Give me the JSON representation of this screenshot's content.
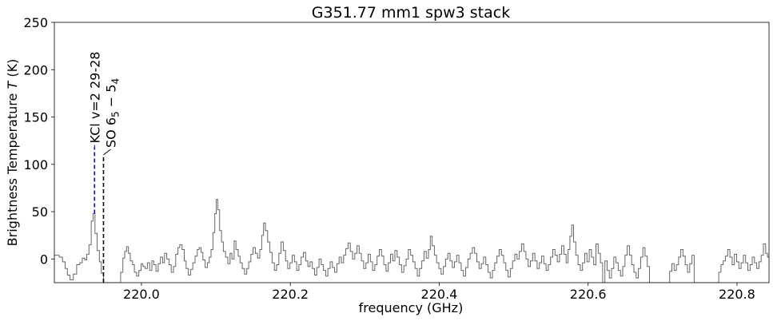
{
  "chart_data": {
    "type": "line",
    "style": "step",
    "title": "G351.77 mm1 spw3 stack",
    "xlabel": "frequency (GHz)",
    "ylabel_prefix": "Brightness Temperature",
    "ylabel_var": "T",
    "ylabel_unit": "(K)",
    "xlim": [
      219.883,
      220.843
    ],
    "ylim": [
      -25,
      250
    ],
    "xticks": [
      {
        "value": 220.0,
        "label": "220.0"
      },
      {
        "value": 220.2,
        "label": "220.2"
      },
      {
        "value": 220.4,
        "label": "220.4"
      },
      {
        "value": 220.6,
        "label": "220.6"
      },
      {
        "value": 220.8,
        "label": "220.8"
      }
    ],
    "yticks": [
      {
        "value": 0,
        "label": "0"
      },
      {
        "value": 50,
        "label": "50"
      },
      {
        "value": 100,
        "label": "100"
      },
      {
        "value": 150,
        "label": "150"
      },
      {
        "value": 200,
        "label": "200"
      },
      {
        "value": 250,
        "label": "250"
      }
    ],
    "grid": false,
    "series_color": "#666666",
    "annotations": [
      {
        "freq": 219.937,
        "peak": 48,
        "top": 118,
        "color": "#0000ff",
        "label": "KCl v=2 29-28",
        "segments": [
          {
            "text": "KCl v=2 29-28"
          }
        ]
      },
      {
        "freq": 219.949,
        "peak": -25,
        "top": 110,
        "color": "#000000",
        "label": "SO 6_5 − 5_4",
        "segments": [
          {
            "text": "SO 6"
          },
          {
            "text": "5",
            "sub": true
          },
          {
            "text": " − 5"
          },
          {
            "text": "4",
            "sub": true
          }
        ]
      }
    ],
    "spectrum": [
      {
        "x": 219.883,
        "y": 4
      },
      {
        "x": 219.8895,
        "y": 2
      },
      {
        "x": 219.894,
        "y": -3
      },
      {
        "x": 219.8975,
        "y": -10
      },
      {
        "x": 219.9005,
        "y": -17
      },
      {
        "x": 219.904,
        "y": -22
      },
      {
        "x": 219.9085,
        "y": -16
      },
      {
        "x": 219.913,
        "y": -6
      },
      {
        "x": 219.917,
        "y": -4
      },
      {
        "x": 219.9205,
        "y": 1
      },
      {
        "x": 219.924,
        "y": -1
      },
      {
        "x": 219.9265,
        "y": 5
      },
      {
        "x": 219.9295,
        "y": 15
      },
      {
        "x": 219.9325,
        "y": 40
      },
      {
        "x": 219.935,
        "y": 48
      },
      {
        "x": 219.9375,
        "y": 27
      },
      {
        "x": 219.9405,
        "y": 9
      },
      {
        "x": 219.9435,
        "y": -3
      },
      {
        "x": 219.946,
        "y": -15
      },
      {
        "x": 219.949,
        "y": -25
      },
      {
        "x": 219.972,
        "y": -14
      },
      {
        "x": 219.975,
        "y": 1
      },
      {
        "x": 219.9775,
        "y": 8
      },
      {
        "x": 219.98,
        "y": 13
      },
      {
        "x": 219.9825,
        "y": 6
      },
      {
        "x": 219.985,
        "y": -2
      },
      {
        "x": 219.988,
        "y": -6
      },
      {
        "x": 219.9905,
        "y": -14
      },
      {
        "x": 219.9935,
        "y": -18
      },
      {
        "x": 219.9965,
        "y": -12
      },
      {
        "x": 219.9995,
        "y": -5
      },
      {
        "x": 220.002,
        "y": -8
      },
      {
        "x": 220.005,
        "y": -10
      },
      {
        "x": 220.008,
        "y": -4
      },
      {
        "x": 220.011,
        "y": -12
      },
      {
        "x": 220.014,
        "y": -2
      },
      {
        "x": 220.0165,
        "y": -6
      },
      {
        "x": 220.0195,
        "y": -13
      },
      {
        "x": 220.0225,
        "y": -5
      },
      {
        "x": 220.0255,
        "y": 2
      },
      {
        "x": 220.0285,
        "y": -4
      },
      {
        "x": 220.031,
        "y": 6
      },
      {
        "x": 220.034,
        "y": 0
      },
      {
        "x": 220.037,
        "y": -6
      },
      {
        "x": 220.04,
        "y": -14
      },
      {
        "x": 220.043,
        "y": -8
      },
      {
        "x": 220.046,
        "y": 5
      },
      {
        "x": 220.049,
        "y": 12
      },
      {
        "x": 220.0515,
        "y": 15
      },
      {
        "x": 220.0545,
        "y": 10
      },
      {
        "x": 220.0575,
        "y": -2
      },
      {
        "x": 220.06,
        "y": -10
      },
      {
        "x": 220.063,
        "y": -17
      },
      {
        "x": 220.066,
        "y": -11
      },
      {
        "x": 220.069,
        "y": -4
      },
      {
        "x": 220.072,
        "y": 3
      },
      {
        "x": 220.075,
        "y": 10
      },
      {
        "x": 220.0775,
        "y": 12
      },
      {
        "x": 220.08,
        "y": 7
      },
      {
        "x": 220.0825,
        "y": -1
      },
      {
        "x": 220.0855,
        "y": -9
      },
      {
        "x": 220.0885,
        "y": -4
      },
      {
        "x": 220.091,
        "y": 2
      },
      {
        "x": 220.0935,
        "y": 10
      },
      {
        "x": 220.096,
        "y": 28
      },
      {
        "x": 220.0985,
        "y": 48
      },
      {
        "x": 220.1005,
        "y": 63
      },
      {
        "x": 220.1025,
        "y": 52
      },
      {
        "x": 220.105,
        "y": 30
      },
      {
        "x": 220.1075,
        "y": 18
      },
      {
        "x": 220.11,
        "y": 8
      },
      {
        "x": 220.113,
        "y": 2
      },
      {
        "x": 220.116,
        "y": -5
      },
      {
        "x": 220.119,
        "y": 6
      },
      {
        "x": 220.1215,
        "y": 0
      },
      {
        "x": 220.1245,
        "y": 19
      },
      {
        "x": 220.127,
        "y": 10
      },
      {
        "x": 220.13,
        "y": 3
      },
      {
        "x": 220.1325,
        "y": -4
      },
      {
        "x": 220.1355,
        "y": -10
      },
      {
        "x": 220.1385,
        "y": -16
      },
      {
        "x": 220.1415,
        "y": -10
      },
      {
        "x": 220.144,
        "y": -3
      },
      {
        "x": 220.147,
        "y": 5
      },
      {
        "x": 220.15,
        "y": 12
      },
      {
        "x": 220.153,
        "y": 6
      },
      {
        "x": 220.156,
        "y": 1
      },
      {
        "x": 220.159,
        "y": 10
      },
      {
        "x": 220.1615,
        "y": 25
      },
      {
        "x": 220.164,
        "y": 38
      },
      {
        "x": 220.1665,
        "y": 30
      },
      {
        "x": 220.1695,
        "y": 18
      },
      {
        "x": 220.1725,
        "y": 7
      },
      {
        "x": 220.1755,
        "y": -4
      },
      {
        "x": 220.1785,
        "y": -12
      },
      {
        "x": 220.1815,
        "y": -6
      },
      {
        "x": 220.1845,
        "y": 6
      },
      {
        "x": 220.1875,
        "y": 18
      },
      {
        "x": 220.1905,
        "y": 9
      },
      {
        "x": 220.1935,
        "y": -2
      },
      {
        "x": 220.1965,
        "y": -10
      },
      {
        "x": 220.1995,
        "y": -4
      },
      {
        "x": 220.2025,
        "y": 4
      },
      {
        "x": 220.2055,
        "y": -3
      },
      {
        "x": 220.2085,
        "y": -12
      },
      {
        "x": 220.2115,
        "y": -6
      },
      {
        "x": 220.2145,
        "y": 2
      },
      {
        "x": 220.2175,
        "y": 7
      },
      {
        "x": 220.2205,
        "y": -2
      },
      {
        "x": 220.2235,
        "y": -8
      },
      {
        "x": 220.2265,
        "y": -3
      },
      {
        "x": 220.2295,
        "y": -10
      },
      {
        "x": 220.2325,
        "y": -17
      },
      {
        "x": 220.2355,
        "y": -9
      },
      {
        "x": 220.2385,
        "y": 0
      },
      {
        "x": 220.2415,
        "y": -6
      },
      {
        "x": 220.2445,
        "y": -12
      },
      {
        "x": 220.2475,
        "y": -18
      },
      {
        "x": 220.2505,
        "y": -10
      },
      {
        "x": 220.2535,
        "y": -3
      },
      {
        "x": 220.2565,
        "y": -9
      },
      {
        "x": 220.2595,
        "y": -14
      },
      {
        "x": 220.2625,
        "y": -5
      },
      {
        "x": 220.2655,
        "y": 2
      },
      {
        "x": 220.2685,
        "y": -4
      },
      {
        "x": 220.2715,
        "y": 4
      },
      {
        "x": 220.2745,
        "y": 11
      },
      {
        "x": 220.2775,
        "y": 17
      },
      {
        "x": 220.2805,
        "y": 8
      },
      {
        "x": 220.2835,
        "y": 0
      },
      {
        "x": 220.2865,
        "y": 6
      },
      {
        "x": 220.2895,
        "y": 14
      },
      {
        "x": 220.2925,
        "y": 6
      },
      {
        "x": 220.2955,
        "y": -2
      },
      {
        "x": 220.2985,
        "y": -10
      },
      {
        "x": 220.3015,
        "y": -4
      },
      {
        "x": 220.3045,
        "y": 5
      },
      {
        "x": 220.3075,
        "y": -3
      },
      {
        "x": 220.3105,
        "y": -12
      },
      {
        "x": 220.3135,
        "y": -6
      },
      {
        "x": 220.3165,
        "y": 3
      },
      {
        "x": 220.3195,
        "y": 10
      },
      {
        "x": 220.3225,
        "y": 3
      },
      {
        "x": 220.3255,
        "y": -6
      },
      {
        "x": 220.3285,
        "y": -13
      },
      {
        "x": 220.3315,
        "y": -4
      },
      {
        "x": 220.3345,
        "y": 5
      },
      {
        "x": 220.3375,
        "y": -2
      },
      {
        "x": 220.3405,
        "y": 9
      },
      {
        "x": 220.3435,
        "y": 2
      },
      {
        "x": 220.3465,
        "y": -6
      },
      {
        "x": 220.3495,
        "y": -14
      },
      {
        "x": 220.3525,
        "y": -7
      },
      {
        "x": 220.3555,
        "y": 0
      },
      {
        "x": 220.3585,
        "y": 10
      },
      {
        "x": 220.3615,
        "y": 4
      },
      {
        "x": 220.3645,
        "y": -3
      },
      {
        "x": 220.3675,
        "y": -10
      },
      {
        "x": 220.3705,
        "y": -18
      },
      {
        "x": 220.3735,
        "y": -10
      },
      {
        "x": 220.3765,
        "y": -2
      },
      {
        "x": 220.3795,
        "y": 8
      },
      {
        "x": 220.3825,
        "y": 1
      },
      {
        "x": 220.3855,
        "y": 10
      },
      {
        "x": 220.388,
        "y": 24
      },
      {
        "x": 220.3905,
        "y": 14
      },
      {
        "x": 220.3935,
        "y": 4
      },
      {
        "x": 220.3965,
        "y": -4
      },
      {
        "x": 220.3995,
        "y": -10
      },
      {
        "x": 220.4025,
        "y": -16
      },
      {
        "x": 220.4055,
        "y": -8
      },
      {
        "x": 220.4085,
        "y": 0
      },
      {
        "x": 220.4115,
        "y": 6
      },
      {
        "x": 220.4145,
        "y": -2
      },
      {
        "x": 220.4175,
        "y": -9
      },
      {
        "x": 220.4205,
        "y": -3
      },
      {
        "x": 220.4235,
        "y": 4
      },
      {
        "x": 220.4265,
        "y": -4
      },
      {
        "x": 220.4295,
        "y": -12
      },
      {
        "x": 220.4325,
        "y": -18
      },
      {
        "x": 220.4355,
        "y": -9
      },
      {
        "x": 220.4385,
        "y": 0
      },
      {
        "x": 220.4415,
        "y": 6
      },
      {
        "x": 220.4445,
        "y": 12
      },
      {
        "x": 220.4475,
        "y": 6
      },
      {
        "x": 220.4505,
        "y": -3
      },
      {
        "x": 220.4535,
        "y": -10
      },
      {
        "x": 220.4565,
        "y": -5
      },
      {
        "x": 220.4595,
        "y": 2
      },
      {
        "x": 220.4625,
        "y": -6
      },
      {
        "x": 220.4655,
        "y": -14
      },
      {
        "x": 220.4685,
        "y": -20
      },
      {
        "x": 220.4715,
        "y": -12
      },
      {
        "x": 220.4745,
        "y": -4
      },
      {
        "x": 220.4775,
        "y": 3
      },
      {
        "x": 220.4805,
        "y": 10
      },
      {
        "x": 220.4835,
        "y": 4
      },
      {
        "x": 220.4865,
        "y": -4
      },
      {
        "x": 220.4895,
        "y": -12
      },
      {
        "x": 220.4925,
        "y": -19
      },
      {
        "x": 220.4955,
        "y": -10
      },
      {
        "x": 220.4985,
        "y": -2
      },
      {
        "x": 220.5015,
        "y": 5
      },
      {
        "x": 220.5045,
        "y": 0
      },
      {
        "x": 220.5075,
        "y": 8
      },
      {
        "x": 220.5105,
        "y": 16
      },
      {
        "x": 220.5135,
        "y": 8
      },
      {
        "x": 220.5165,
        "y": 0
      },
      {
        "x": 220.5195,
        "y": -8
      },
      {
        "x": 220.5225,
        "y": -2
      },
      {
        "x": 220.5255,
        "y": 6
      },
      {
        "x": 220.5285,
        "y": -2
      },
      {
        "x": 220.5315,
        "y": -10
      },
      {
        "x": 220.5345,
        "y": -4
      },
      {
        "x": 220.5375,
        "y": 3
      },
      {
        "x": 220.5405,
        "y": -5
      },
      {
        "x": 220.5435,
        "y": -12
      },
      {
        "x": 220.5465,
        "y": -6
      },
      {
        "x": 220.5495,
        "y": 2
      },
      {
        "x": 220.5525,
        "y": 10
      },
      {
        "x": 220.5555,
        "y": 4
      },
      {
        "x": 220.5585,
        "y": -3
      },
      {
        "x": 220.5615,
        "y": 5
      },
      {
        "x": 220.5645,
        "y": 14
      },
      {
        "x": 220.5675,
        "y": 5
      },
      {
        "x": 220.5705,
        "y": -4
      },
      {
        "x": 220.573,
        "y": 10
      },
      {
        "x": 220.5755,
        "y": 24
      },
      {
        "x": 220.578,
        "y": 36
      },
      {
        "x": 220.5805,
        "y": 18
      },
      {
        "x": 220.5835,
        "y": 4
      },
      {
        "x": 220.5865,
        "y": -6
      },
      {
        "x": 220.5895,
        "y": -12
      },
      {
        "x": 220.5925,
        "y": -4
      },
      {
        "x": 220.5955,
        "y": 6
      },
      {
        "x": 220.5985,
        "y": -3
      },
      {
        "x": 220.6015,
        "y": 10
      },
      {
        "x": 220.6045,
        "y": 2
      },
      {
        "x": 220.6075,
        "y": -6
      },
      {
        "x": 220.6105,
        "y": 16
      },
      {
        "x": 220.6135,
        "y": 6
      },
      {
        "x": 220.6165,
        "y": -4
      },
      {
        "x": 220.6195,
        "y": -25
      },
      {
        "x": 220.6225,
        "y": -2
      },
      {
        "x": 220.6255,
        "y": -12
      },
      {
        "x": 220.6285,
        "y": -20
      },
      {
        "x": 220.6315,
        "y": -10
      },
      {
        "x": 220.6345,
        "y": 2
      },
      {
        "x": 220.6375,
        "y": -4
      },
      {
        "x": 220.6405,
        "y": -12
      },
      {
        "x": 220.6435,
        "y": -18
      },
      {
        "x": 220.6465,
        "y": -8
      },
      {
        "x": 220.6495,
        "y": 4
      },
      {
        "x": 220.6525,
        "y": 14
      },
      {
        "x": 220.6555,
        "y": 4
      },
      {
        "x": 220.6585,
        "y": -6
      },
      {
        "x": 220.6615,
        "y": -14
      },
      {
        "x": 220.6645,
        "y": -20
      },
      {
        "x": 220.6675,
        "y": -10
      },
      {
        "x": 220.6705,
        "y": 2
      },
      {
        "x": 220.6735,
        "y": 12
      },
      {
        "x": 220.6765,
        "y": 3
      },
      {
        "x": 220.6795,
        "y": -8
      },
      {
        "x": 220.6825,
        "y": -25
      },
      {
        "x": 220.7095,
        "y": -13
      },
      {
        "x": 220.7125,
        "y": -5
      },
      {
        "x": 220.7155,
        "y": -12
      },
      {
        "x": 220.7185,
        "y": -6
      },
      {
        "x": 220.7215,
        "y": 2
      },
      {
        "x": 220.7245,
        "y": 10
      },
      {
        "x": 220.7275,
        "y": 3
      },
      {
        "x": 220.7305,
        "y": -6
      },
      {
        "x": 220.7335,
        "y": -14
      },
      {
        "x": 220.7365,
        "y": -5
      },
      {
        "x": 220.7395,
        "y": 4
      },
      {
        "x": 220.7425,
        "y": -25
      },
      {
        "x": 220.7755,
        "y": -14
      },
      {
        "x": 220.7785,
        "y": -6
      },
      {
        "x": 220.7815,
        "y": -2
      },
      {
        "x": 220.7845,
        "y": 3
      },
      {
        "x": 220.7875,
        "y": 10
      },
      {
        "x": 220.7905,
        "y": 2
      },
      {
        "x": 220.7935,
        "y": -6
      },
      {
        "x": 220.7965,
        "y": 5
      },
      {
        "x": 220.7995,
        "y": -3
      },
      {
        "x": 220.8025,
        "y": -10
      },
      {
        "x": 220.8055,
        "y": -4
      },
      {
        "x": 220.8085,
        "y": 4
      },
      {
        "x": 220.8115,
        "y": -4
      },
      {
        "x": 220.8145,
        "y": -12
      },
      {
        "x": 220.8175,
        "y": -6
      },
      {
        "x": 220.8205,
        "y": 2
      },
      {
        "x": 220.8235,
        "y": -4
      },
      {
        "x": 220.8265,
        "y": -10
      },
      {
        "x": 220.8295,
        "y": -3
      },
      {
        "x": 220.8325,
        "y": 4
      },
      {
        "x": 220.8355,
        "y": 16
      },
      {
        "x": 220.8385,
        "y": 6
      },
      {
        "x": 220.841,
        "y": 2
      }
    ]
  }
}
